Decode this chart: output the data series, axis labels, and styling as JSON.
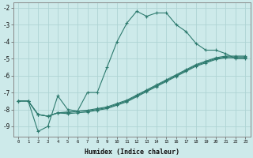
{
  "xlabel": "Humidex (Indice chaleur)",
  "bg_color": "#cdeaea",
  "line_color": "#2d7a6e",
  "grid_color": "#aed4d4",
  "xlim": [
    -0.5,
    23.5
  ],
  "ylim": [
    -9.6,
    -1.7
  ],
  "yticks": [
    -9,
    -8,
    -7,
    -6,
    -5,
    -4,
    -3,
    -2
  ],
  "xticks": [
    0,
    1,
    2,
    3,
    4,
    5,
    6,
    7,
    8,
    9,
    10,
    11,
    12,
    13,
    14,
    15,
    16,
    17,
    18,
    19,
    20,
    21,
    22,
    23
  ],
  "lines": [
    {
      "x": [
        0,
        1,
        2,
        3,
        4,
        5,
        6,
        7,
        8,
        9,
        10,
        11,
        12,
        13,
        14,
        15,
        16,
        17,
        18,
        19,
        20,
        21,
        22,
        23
      ],
      "y": [
        -7.5,
        -7.5,
        -9.3,
        -9.0,
        -7.2,
        -8.0,
        -8.1,
        -7.0,
        -7.0,
        -5.5,
        -4.0,
        -2.9,
        -2.2,
        -2.5,
        -2.3,
        -2.3,
        -3.0,
        -3.4,
        -4.1,
        -4.5,
        -4.5,
        -4.7,
        -5.0,
        -5.0
      ]
    },
    {
      "x": [
        0,
        1,
        2,
        3,
        4,
        5,
        6,
        7,
        8,
        9,
        10,
        11,
        12,
        13,
        14,
        15,
        16,
        17,
        18,
        19,
        20,
        21,
        22,
        23
      ],
      "y": [
        -7.5,
        -7.5,
        -8.3,
        -8.4,
        -8.2,
        -8.2,
        -8.1,
        -8.1,
        -8.0,
        -7.9,
        -7.7,
        -7.5,
        -7.2,
        -6.9,
        -6.6,
        -6.3,
        -6.0,
        -5.7,
        -5.4,
        -5.2,
        -5.0,
        -4.9,
        -4.9,
        -4.9
      ]
    },
    {
      "x": [
        0,
        1,
        2,
        3,
        4,
        5,
        6,
        7,
        8,
        9,
        10,
        11,
        12,
        13,
        14,
        15,
        16,
        17,
        18,
        19,
        20,
        21,
        22,
        23
      ],
      "y": [
        -7.5,
        -7.5,
        -8.3,
        -8.4,
        -8.2,
        -8.25,
        -8.2,
        -8.15,
        -8.05,
        -7.95,
        -7.75,
        -7.55,
        -7.25,
        -6.95,
        -6.65,
        -6.35,
        -6.05,
        -5.75,
        -5.45,
        -5.25,
        -5.05,
        -4.95,
        -4.95,
        -4.95
      ]
    },
    {
      "x": [
        0,
        1,
        2,
        3,
        4,
        5,
        6,
        7,
        8,
        9,
        10,
        11,
        12,
        13,
        14,
        15,
        16,
        17,
        18,
        19,
        20,
        21,
        22,
        23
      ],
      "y": [
        -7.5,
        -7.5,
        -8.3,
        -8.4,
        -8.2,
        -8.15,
        -8.1,
        -8.05,
        -7.95,
        -7.85,
        -7.65,
        -7.45,
        -7.15,
        -6.85,
        -6.55,
        -6.25,
        -5.95,
        -5.65,
        -5.35,
        -5.15,
        -4.95,
        -4.85,
        -4.85,
        -4.85
      ]
    }
  ]
}
